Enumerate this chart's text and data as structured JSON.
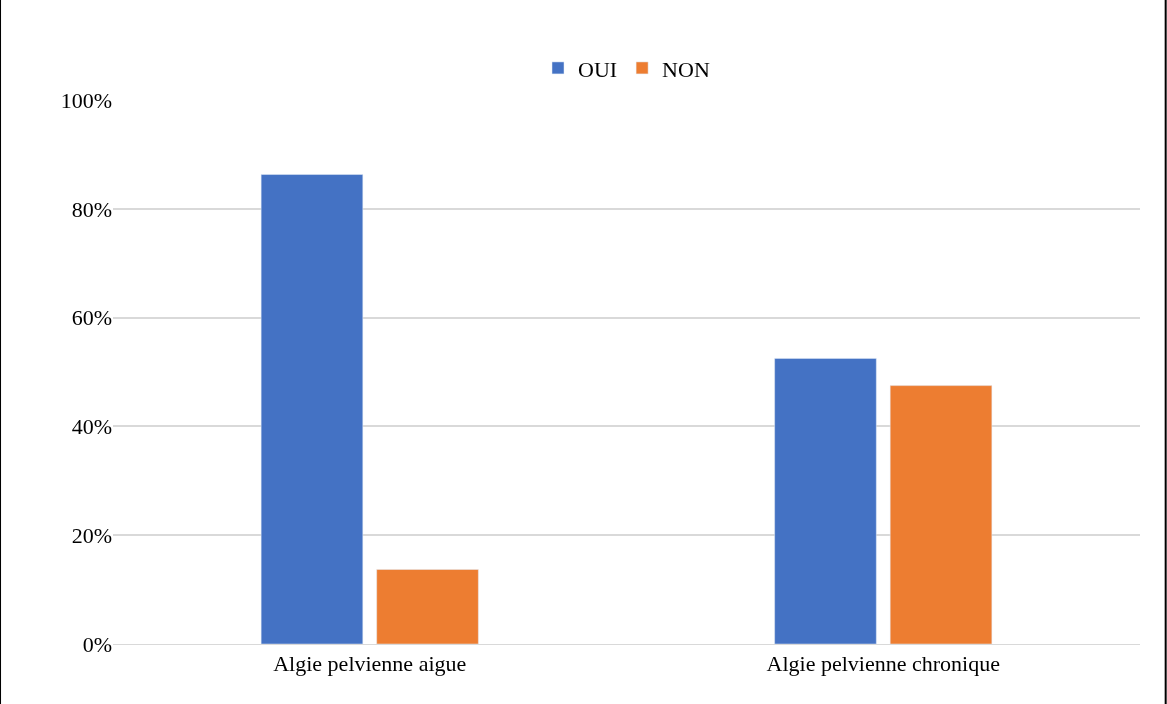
{
  "chart_data": {
    "type": "bar",
    "categories": [
      "Algie pelvienne aigue",
      "Algie pelvienne chronique"
    ],
    "series": [
      {
        "name": "OUI",
        "color": "#4472c4",
        "values": [
          86.3,
          52.5
        ]
      },
      {
        "name": "NON",
        "color": "#ed7d31",
        "values": [
          13.7,
          47.5
        ]
      }
    ],
    "ylim": [
      0,
      100
    ],
    "yticks": [
      {
        "value": 0,
        "label": "0%"
      },
      {
        "value": 20,
        "label": "20%"
      },
      {
        "value": 40,
        "label": "40%"
      },
      {
        "value": 60,
        "label": "60%"
      },
      {
        "value": 80,
        "label": "80%"
      },
      {
        "value": 100,
        "label": "100%"
      }
    ],
    "grid": "y",
    "legend": "top"
  }
}
